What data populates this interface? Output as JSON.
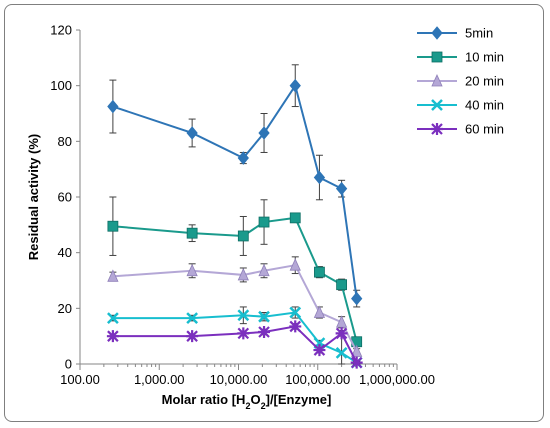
{
  "chart_data": {
    "type": "line",
    "x_scale": "log",
    "xlabel": "Molar ratio [H2O2]/[Enzyme]",
    "xlabel_parts": {
      "a": "Molar ratio [H",
      "sub1": "2",
      "b": "O",
      "sub2": "2",
      "c": "]/[Enzyme]"
    },
    "ylabel": "Residual activity (%)",
    "xlim": [
      100,
      1000000
    ],
    "ylim": [
      0,
      120
    ],
    "x_ticks": [
      100,
      1000,
      10000,
      100000,
      1000000
    ],
    "x_tick_labels": [
      "100.00",
      "1,000.00",
      "10,000.00",
      "100,000.00",
      "1,000,000.00"
    ],
    "y_ticks": [
      0,
      20,
      40,
      60,
      80,
      100,
      120
    ],
    "y_tick_labels": [
      "0",
      "20",
      "40",
      "60",
      "80",
      "100",
      "120"
    ],
    "grid": "none",
    "legend_position": "top-right",
    "x": [
      260,
      2600,
      11500,
      21000,
      52000,
      105000,
      200000,
      310000
    ],
    "series": [
      {
        "name": "5min",
        "color": "#2e75b6",
        "marker": "diamond",
        "values": [
          92.5,
          83,
          74,
          83,
          100,
          67,
          63,
          23.5
        ],
        "errors": [
          9.5,
          5,
          2,
          7,
          7.5,
          8,
          3,
          3
        ]
      },
      {
        "name": "10 min",
        "color": "#1a9a8c",
        "marker": "square",
        "values": [
          49.5,
          47,
          46,
          51,
          52.5,
          33,
          28.5,
          8
        ],
        "errors": [
          10.5,
          3,
          7,
          8,
          1,
          2,
          2,
          1
        ]
      },
      {
        "name": "20 min",
        "color": "#b4a7d6",
        "marker": "triangle",
        "values": [
          31.5,
          33.5,
          32,
          33.5,
          35.5,
          18.5,
          15,
          4.5
        ],
        "errors": [
          1.5,
          2.5,
          2.5,
          2.5,
          3,
          2,
          2,
          1
        ]
      },
      {
        "name": "40 min",
        "color": "#17becf",
        "marker": "x",
        "values": [
          16.5,
          16.5,
          17.5,
          17,
          18.5,
          7.5,
          4,
          0.5
        ],
        "errors": [
          1,
          1,
          3,
          1.5,
          2,
          1,
          8,
          0.5
        ]
      },
      {
        "name": "60 min",
        "color": "#7b2fbe",
        "marker": "asterisk",
        "values": [
          10,
          10,
          11,
          11.5,
          13.5,
          5,
          11,
          0.5
        ],
        "errors": [
          0.8,
          0.8,
          0.8,
          1,
          1,
          1,
          1,
          0.5
        ]
      }
    ]
  }
}
